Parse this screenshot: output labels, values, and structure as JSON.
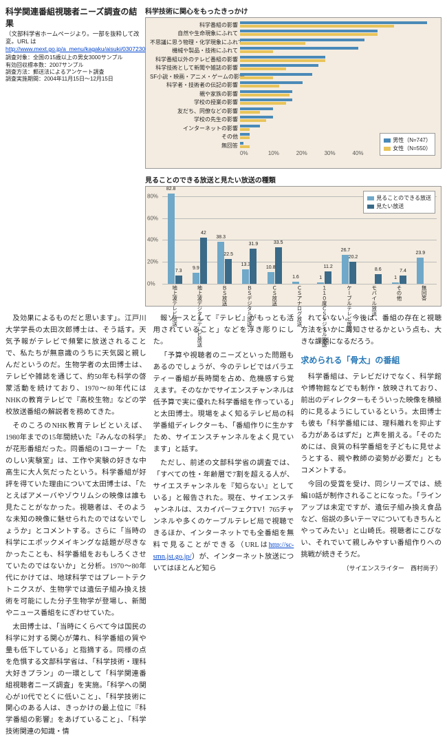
{
  "header": {
    "title": "科学関連番組視聴者ニーズ調査の結果",
    "subtitle_prefix": "（文部科学省ホームページより。一部を抜粋して改変。URL は ",
    "url": "http://www.mext.go.jp/a_menu/kagaku/aisuki/03072301/006.htm",
    "survey_meta": [
      "調査対象：全国の15歳以上の男女3000サンプル",
      "有効回収標本数：2007サンプル",
      "調査方法：郵送法によるアンケート調査",
      "調査実施期間：2004年11月15日〜12月15日"
    ]
  },
  "chart1": {
    "title": "科学技術に関心をもったきっかけ",
    "color_m": "#4a8ab8",
    "color_f": "#e8c45a",
    "legend_m": "男性（N=747）",
    "legend_f": "女性（N=550）",
    "xmax": 60,
    "xticks": [
      "0%",
      "10%",
      "20%",
      "30%",
      "40%",
      "50%",
      "60%"
    ],
    "rows": [
      {
        "label": "科学番組の影響",
        "m": 57,
        "f": 47
      },
      {
        "label": "自然や生命現象にふれて",
        "m": 42,
        "f": 42
      },
      {
        "label": "不思議に思う物理・化学現象にふれて",
        "m": 38,
        "f": 20
      },
      {
        "label": "機械や製品・技術にふれて",
        "m": 36,
        "f": 10
      },
      {
        "label": "科学番組以外のテレビ番組の影響",
        "m": 26,
        "f": 26
      },
      {
        "label": "科学技術として新聞や雑誌の影響",
        "m": 24,
        "f": 14
      },
      {
        "label": "SF小説・映画・アニメ・ゲームの影響",
        "m": 22,
        "f": 10
      },
      {
        "label": "科学者・技術者の伝記の影響",
        "m": 19,
        "f": 12
      },
      {
        "label": "親や家族の影響",
        "m": 16,
        "f": 15
      },
      {
        "label": "学校の授業の影響",
        "m": 16,
        "f": 14
      },
      {
        "label": "友だち、同僚などの影響",
        "m": 10,
        "f": 6
      },
      {
        "label": "学校の先生の影響",
        "m": 10,
        "f": 8
      },
      {
        "label": "インターネットの影響",
        "m": 6,
        "f": 3
      },
      {
        "label": "その他",
        "m": 3,
        "f": 3
      },
      {
        "label": "無回答",
        "m": 1,
        "f": 3
      }
    ]
  },
  "chart2": {
    "title": "見ることのできる放送と見たい放送の種類",
    "color_a": "#6fa8c8",
    "color_b": "#3a6a88",
    "legend_a": "見ることのできる放送",
    "legend_b": "見たい放送",
    "ymax": 85,
    "yticks": [
      0,
      20,
      40,
      60,
      80
    ],
    "groups": [
      {
        "cat": "地上波テレビ放送",
        "a": 82.8,
        "b": 7.3
      },
      {
        "cat": "地上波デジタルテレビ放送",
        "a": 9.9,
        "b": 42.0
      },
      {
        "cat": "ＢＳ放送",
        "a": 38.3,
        "b": 22.5
      },
      {
        "cat": "ＢＳデジタル放送",
        "a": 13.3,
        "b": 31.9
      },
      {
        "cat": "ＣＳ放送",
        "a": 10.8,
        "b": 33.5
      },
      {
        "cat": "ＣＳアナログ放送",
        "a": 1.6,
        "b": 0
      },
      {
        "cat": "１１０度ＣＳデジタル放送",
        "a": 1.0,
        "b": 11.2
      },
      {
        "cat": "ケーブルテレビ放送",
        "a": 26.7,
        "b": 20.2
      },
      {
        "cat": "モバイル放送",
        "a": 0,
        "b": 8.6
      },
      {
        "cat": "その他",
        "a": 1.0,
        "b": 7.4
      },
      {
        "cat": "無回答",
        "a": 23.9,
        "b": 0
      }
    ]
  },
  "body": {
    "col1": [
      "及効果によるものだと思います」。江戸川大学学長の太田次郎博士は、そう話す。天気予報がテレビで頻繁に放送されることで、私たちが無意識のうちに天気図と親しんだというのだ。生物学者の太田博士は、テレビや雑誌を通じて、約50年も科学の啓蒙活動を続けており、1970〜80年代にはNHKの教育テレビで『高校生物』などの学校放送番組の解説者を務めてきた。",
      "そのころのNHK教育テレビといえば、1980年までの15年間続いた『みんなの科学』が花形番組だった。同番組の1コーナー「たのしい実験室」は、工作や実験の好きな中高生に大人気だったという。科学番組が好評を得ていた理由について太田博士は、「たとえばアメーバやゾウリムシの映像は誰も見たことがなかった。視聴者は、そのような未知の映像に魅せられたのではないでしょうか」とコメントする。さらに「当時の科学にエポックメイキングな話題が尽きなかったことも、科学番組をおもしろくさせていたのではないか」と分析。1970〜80年代にかけては、地球科学ではプレートテクトニクスが、生物学では遺伝子組み換え技術を可能にした分子生物学が登場し、新聞やニュース番組をにぎわせていた。",
      "太田博士は、「当時にくらべて今は国民の科学に対する関心が薄れ、科学番組の質や量も低下している」と指摘する。同様の点を危惧する文部科学省は、「科学技術・理科大好きプラン」の一環として「科学関連番組視聴者ニーズ調査」を実施。「科学への関心が10代でとくに低いこと」、「科学技術に関心のある人は、きっかけの最上位に『科学番組の影響』をあげていること」、「科学技術関連の知識・情"
    ],
    "col2": [
      "報ソースとして『テレビ』がもっとも活用されていること」などを浮き彫りにした。",
      "「予算や視聴者のニーズといった問題もあるのでしょうが、今のテレビではバラエティー番組が長時間を占め、危機感すら覚えます。そのなかでサイエンスチャンネルは低予算で実に優れた科学番組を作っている」と太田博士。現場をよく知るテレビ局の科学番組ディレクターも、「番組作りに生かすため、サイエンスチャンネルをよく見ています」と話す。",
      "ただし、前述の文部科学省の調査では、「すべての性・年齢層で7割を超える人が、サイエスチャンネルを『知らない』としている」と報告された。現在、サイエンスチャンネルは、スカイパーフェクTV！765チャンネルや多くのケーブルテレビ局で視聴できるほか、インターネットでも全番組を無料で見ることができる（URLは",
      "）が、インターネット放送についてはほとんど知ら"
    ],
    "col2_url": "http://sc-smn.jst.go.jp/",
    "col3_intro": [
      "れていない。今後は、番組の存在と視聴方法をいかに周知させるかという点も、大きな課題になるだろう。"
    ],
    "section_head": "求められる「骨太」の番組",
    "col3_rest": [
      "科学番組は、テレビだけでなく、科学館や博物館などでも制作・放映されており、前出のディレクターもそういった映像を積極的に見るようにしているという。太田博士も彼も「科学番組には、理科離れを抑止する力があるはずだ」と声を揃える。「そのためには、良質の科学番組を子どもに見せようとする、親や教師の姿勢が必要だ」ともコメントする。",
      "今回の受賞を受け、同シリーズでは、続編10話が制作されることになった。「ラインアップは未定ですが、遺伝子組み換え食品など、俗説の多いテーマについてもきちんとやってみたい」と山崎氏。視聴者にこびない、それでいて親しみやすい番組作りへの挑戦が続きそうだ。"
    ],
    "byline": "（サイエンスライター　西村尚子）"
  }
}
